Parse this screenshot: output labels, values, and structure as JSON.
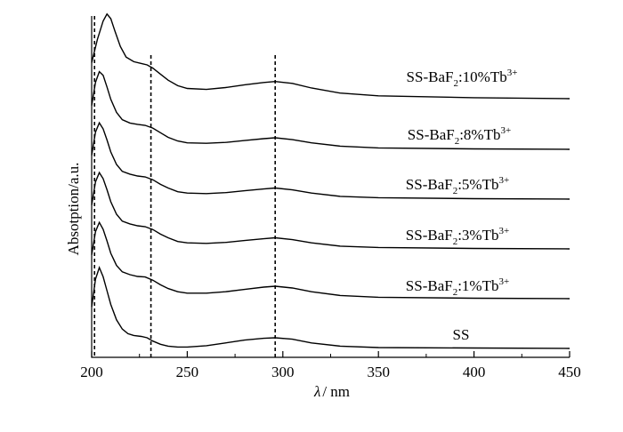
{
  "chart_data": {
    "type": "line",
    "xlabel": "λ / nm",
    "xlabel_symbol": "λ",
    "xlabel_unit": "/ nm",
    "ylabel": "Absotption/a.u.",
    "xlim": [
      200,
      450
    ],
    "x_ticks": [
      200,
      250,
      300,
      350,
      400,
      450
    ],
    "y_ticks_shown": false,
    "reference_lines_nm": [
      201.5,
      231,
      296
    ],
    "series": [
      {
        "name": "SS",
        "label_parts": {
          "base": "SS",
          "sub": "",
          "dopant": "",
          "sup": ""
        },
        "offset": 0,
        "points": [
          [
            200,
            90
          ],
          [
            202,
            150
          ],
          [
            204,
            175
          ],
          [
            206,
            155
          ],
          [
            208,
            125
          ],
          [
            210,
            95
          ],
          [
            213,
            62
          ],
          [
            216,
            42
          ],
          [
            219,
            32
          ],
          [
            222,
            28
          ],
          [
            226,
            26
          ],
          [
            229,
            23
          ],
          [
            232,
            16
          ],
          [
            236,
            9
          ],
          [
            240,
            5
          ],
          [
            245,
            3
          ],
          [
            250,
            3
          ],
          [
            260,
            6
          ],
          [
            270,
            12
          ],
          [
            280,
            18
          ],
          [
            290,
            22
          ],
          [
            296,
            23
          ],
          [
            305,
            20
          ],
          [
            315,
            12
          ],
          [
            330,
            5
          ],
          [
            350,
            2
          ],
          [
            400,
            1
          ],
          [
            450,
            0
          ]
        ]
      },
      {
        "name": "SS-BaF2:1%Tb3+",
        "label_parts": {
          "base": "SS-BaF",
          "sub": "2",
          "dopant": ":1%Tb",
          "sup": "3+"
        },
        "offset": 1,
        "points": [
          [
            200,
            95
          ],
          [
            202,
            145
          ],
          [
            204,
            165
          ],
          [
            206,
            150
          ],
          [
            208,
            125
          ],
          [
            210,
            98
          ],
          [
            213,
            72
          ],
          [
            216,
            58
          ],
          [
            220,
            52
          ],
          [
            224,
            48
          ],
          [
            228,
            47
          ],
          [
            232,
            40
          ],
          [
            236,
            30
          ],
          [
            240,
            22
          ],
          [
            245,
            15
          ],
          [
            250,
            12
          ],
          [
            260,
            12
          ],
          [
            270,
            15
          ],
          [
            280,
            20
          ],
          [
            290,
            25
          ],
          [
            296,
            27
          ],
          [
            305,
            23
          ],
          [
            315,
            15
          ],
          [
            330,
            7
          ],
          [
            350,
            3
          ],
          [
            400,
            1
          ],
          [
            450,
            0
          ]
        ]
      },
      {
        "name": "SS-BaF2:3%Tb3+",
        "label_parts": {
          "base": "SS-BaF",
          "sub": "2",
          "dopant": ":3%Tb",
          "sup": "3+"
        },
        "offset": 2,
        "points": [
          [
            200,
            95
          ],
          [
            202,
            145
          ],
          [
            204,
            165
          ],
          [
            206,
            152
          ],
          [
            208,
            128
          ],
          [
            210,
            102
          ],
          [
            213,
            75
          ],
          [
            216,
            60
          ],
          [
            220,
            54
          ],
          [
            224,
            50
          ],
          [
            228,
            48
          ],
          [
            232,
            42
          ],
          [
            236,
            32
          ],
          [
            240,
            24
          ],
          [
            245,
            16
          ],
          [
            250,
            13
          ],
          [
            260,
            12
          ],
          [
            270,
            14
          ],
          [
            280,
            18
          ],
          [
            290,
            22
          ],
          [
            296,
            24
          ],
          [
            305,
            20
          ],
          [
            315,
            13
          ],
          [
            330,
            6
          ],
          [
            350,
            3
          ],
          [
            400,
            1
          ],
          [
            450,
            0
          ]
        ]
      },
      {
        "name": "SS-BaF2:5%Tb3+",
        "label_parts": {
          "base": "SS-BaF",
          "sub": "2",
          "dopant": ":5%Tb",
          "sup": "3+"
        },
        "offset": 3,
        "points": [
          [
            200,
            95
          ],
          [
            202,
            145
          ],
          [
            204,
            165
          ],
          [
            206,
            152
          ],
          [
            208,
            128
          ],
          [
            210,
            102
          ],
          [
            213,
            75
          ],
          [
            216,
            60
          ],
          [
            220,
            54
          ],
          [
            224,
            50
          ],
          [
            228,
            48
          ],
          [
            232,
            42
          ],
          [
            236,
            32
          ],
          [
            240,
            24
          ],
          [
            245,
            16
          ],
          [
            250,
            13
          ],
          [
            260,
            12
          ],
          [
            270,
            14
          ],
          [
            280,
            18
          ],
          [
            290,
            22
          ],
          [
            296,
            24
          ],
          [
            305,
            20
          ],
          [
            315,
            13
          ],
          [
            330,
            6
          ],
          [
            350,
            3
          ],
          [
            400,
            1
          ],
          [
            450,
            0
          ]
        ]
      },
      {
        "name": "SS-BaF2:8%Tb3+",
        "label_parts": {
          "base": "SS-BaF",
          "sub": "2",
          "dopant": ":8%Tb",
          "sup": "3+"
        },
        "offset": 4,
        "points": [
          [
            200,
            95
          ],
          [
            202,
            145
          ],
          [
            204,
            168
          ],
          [
            206,
            160
          ],
          [
            208,
            135
          ],
          [
            210,
            108
          ],
          [
            213,
            80
          ],
          [
            216,
            64
          ],
          [
            220,
            57
          ],
          [
            224,
            54
          ],
          [
            228,
            52
          ],
          [
            232,
            46
          ],
          [
            236,
            36
          ],
          [
            240,
            26
          ],
          [
            245,
            18
          ],
          [
            250,
            14
          ],
          [
            260,
            13
          ],
          [
            270,
            15
          ],
          [
            280,
            19
          ],
          [
            290,
            23
          ],
          [
            296,
            25
          ],
          [
            305,
            21
          ],
          [
            315,
            14
          ],
          [
            330,
            7
          ],
          [
            350,
            3
          ],
          [
            400,
            1
          ],
          [
            450,
            0
          ]
        ]
      },
      {
        "name": "SS-BaF2:10%Tb3+",
        "label_parts": {
          "base": "SS-BaF",
          "sub": "2",
          "dopant": ":10%Tb",
          "sup": "3+"
        },
        "offset": 5,
        "points": [
          [
            200,
            80
          ],
          [
            203,
            130
          ],
          [
            206,
            170
          ],
          [
            208,
            185
          ],
          [
            210,
            175
          ],
          [
            212,
            150
          ],
          [
            215,
            115
          ],
          [
            218,
            92
          ],
          [
            222,
            82
          ],
          [
            226,
            78
          ],
          [
            229,
            75
          ],
          [
            232,
            68
          ],
          [
            236,
            55
          ],
          [
            240,
            42
          ],
          [
            245,
            30
          ],
          [
            250,
            24
          ],
          [
            260,
            22
          ],
          [
            270,
            26
          ],
          [
            280,
            32
          ],
          [
            290,
            37
          ],
          [
            296,
            39
          ],
          [
            305,
            35
          ],
          [
            315,
            25
          ],
          [
            330,
            14
          ],
          [
            350,
            8
          ],
          [
            400,
            4
          ],
          [
            450,
            2
          ]
        ]
      }
    ]
  }
}
